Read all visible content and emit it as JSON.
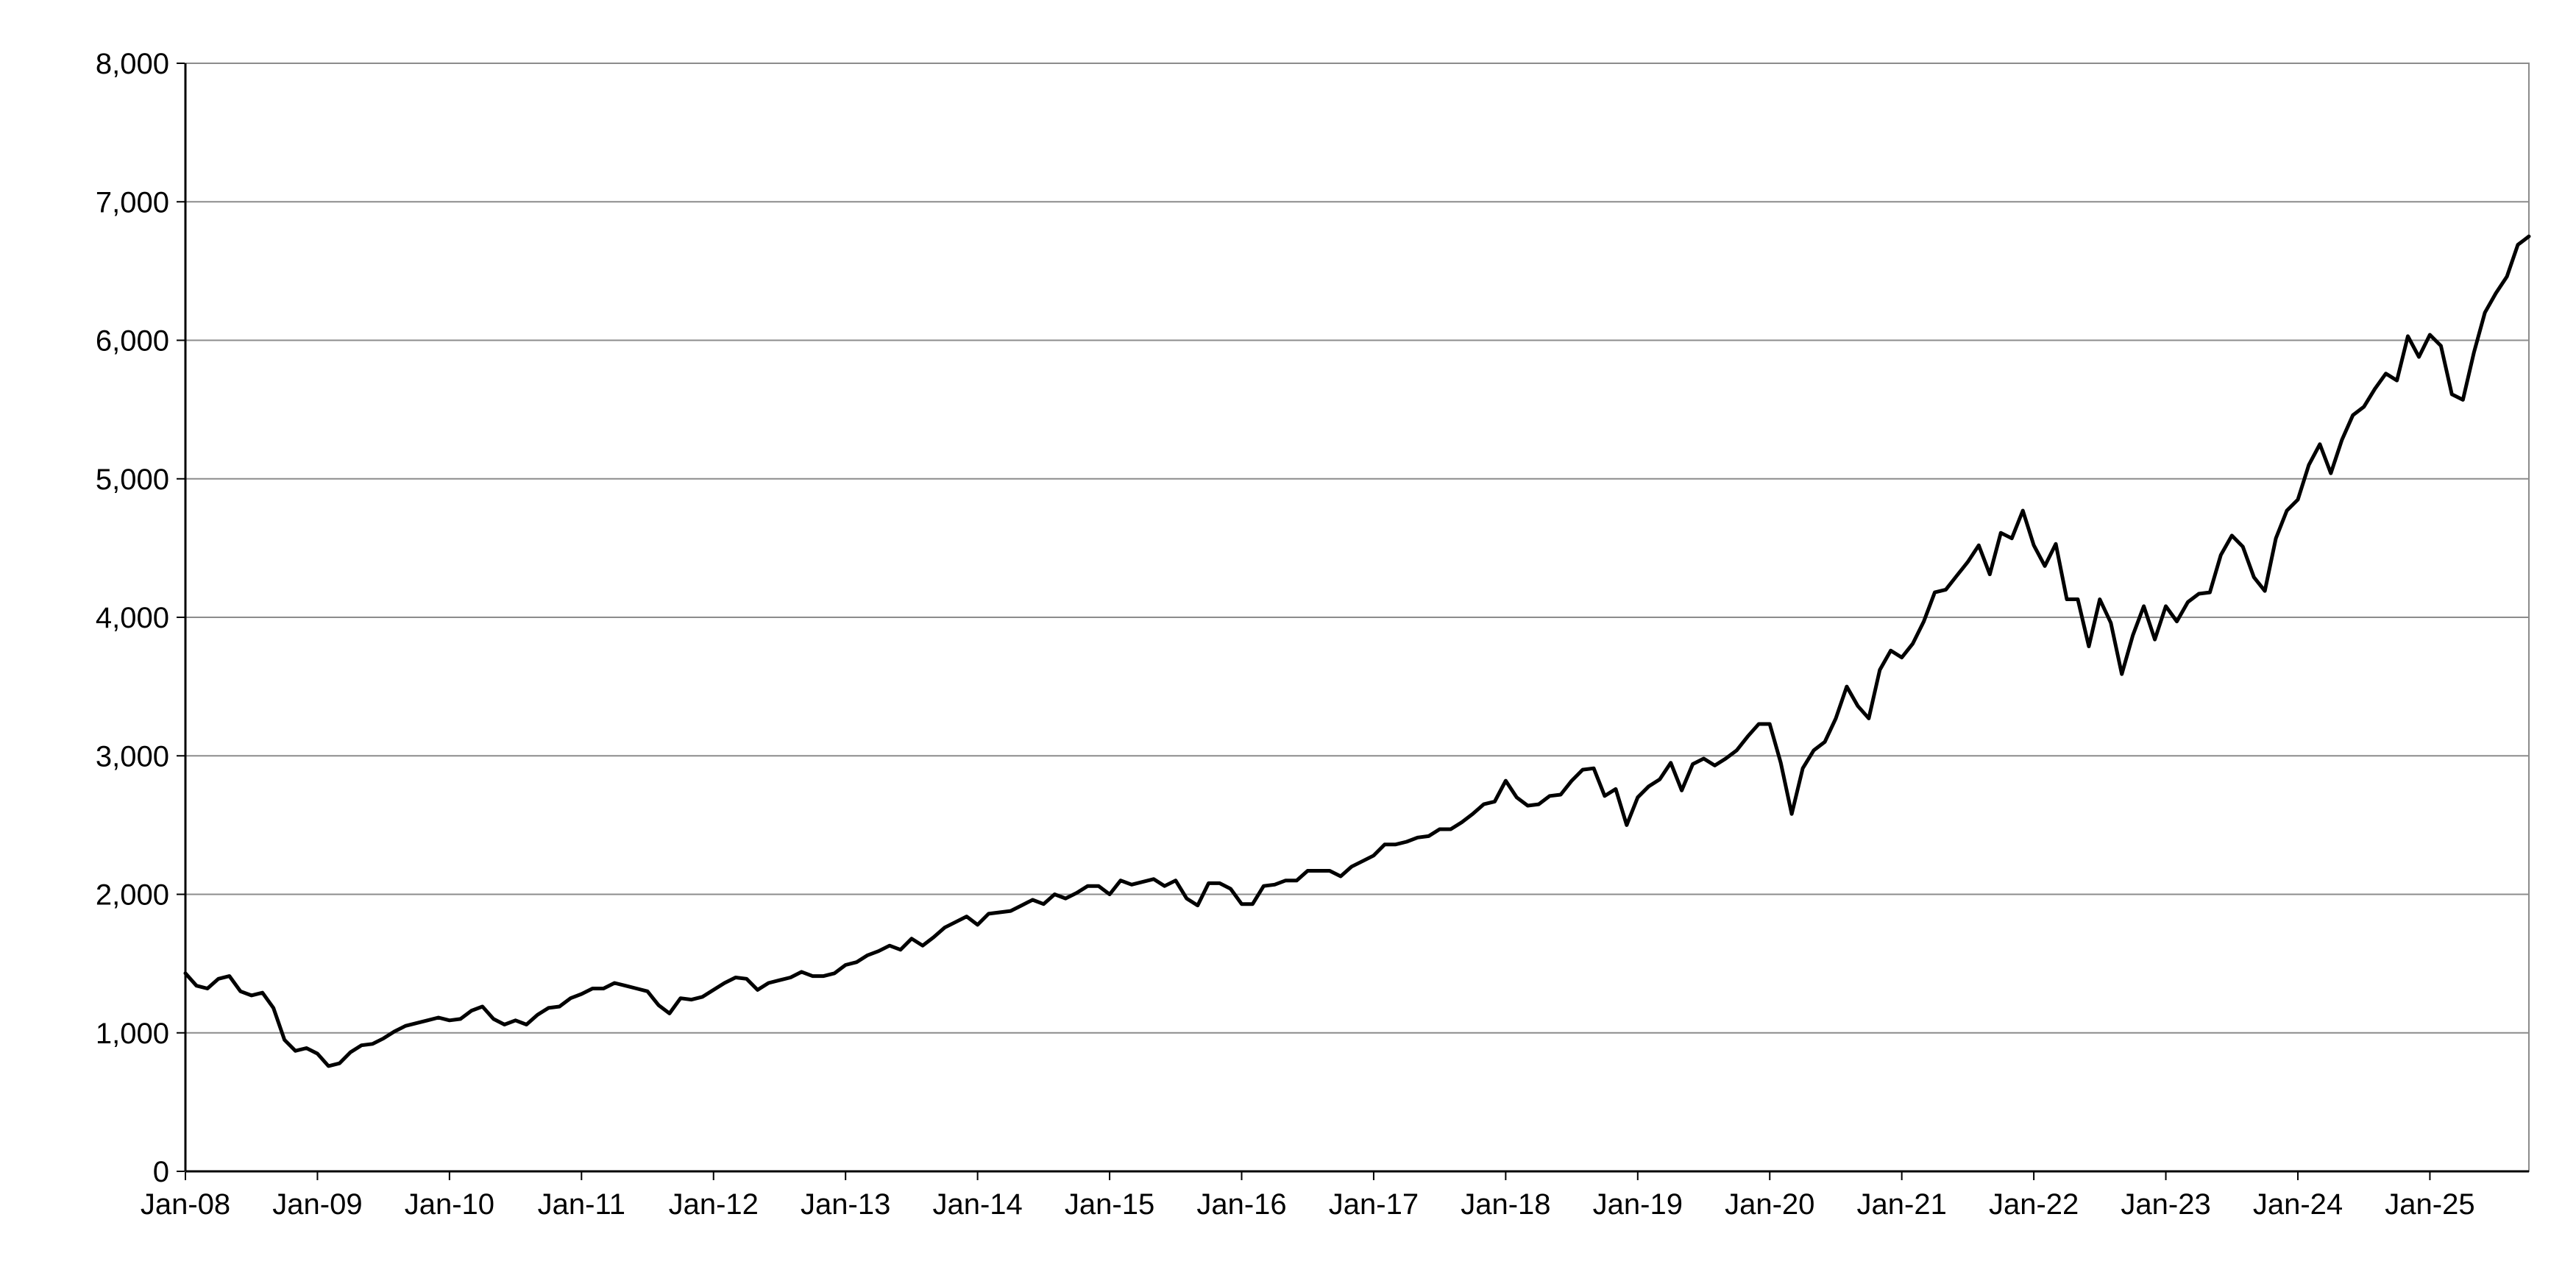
{
  "chart_data": {
    "type": "line",
    "title": "",
    "xlabel": "",
    "ylabel": "",
    "x_tick_labels": [
      "Jan-08",
      "Jan-09",
      "Jan-10",
      "Jan-11",
      "Jan-12",
      "Jan-13",
      "Jan-14",
      "Jan-15",
      "Jan-16",
      "Jan-17",
      "Jan-18",
      "Jan-19",
      "Jan-20",
      "Jan-21",
      "Jan-22",
      "Jan-23",
      "Jan-24",
      "Jan-25"
    ],
    "y_tick_labels": [
      "0",
      "1,000",
      "2,000",
      "3,000",
      "4,000",
      "5,000",
      "6,000",
      "7,000",
      "8,000"
    ],
    "y_ticks": [
      0,
      1000,
      2000,
      3000,
      4000,
      5000,
      6000,
      7000,
      8000
    ],
    "ylim": [
      0,
      8000
    ],
    "xlim": [
      "2008-01",
      "2025-10"
    ],
    "grid": "horizontal",
    "legend": "none",
    "series": [
      {
        "color": "#000000",
        "x": [
          "2008-01",
          "2008-02",
          "2008-03",
          "2008-04",
          "2008-05",
          "2008-06",
          "2008-07",
          "2008-08",
          "2008-09",
          "2008-10",
          "2008-11",
          "2008-12",
          "2009-01",
          "2009-02",
          "2009-03",
          "2009-04",
          "2009-05",
          "2009-06",
          "2009-07",
          "2009-08",
          "2009-09",
          "2009-10",
          "2009-11",
          "2009-12",
          "2010-01",
          "2010-02",
          "2010-03",
          "2010-04",
          "2010-05",
          "2010-06",
          "2010-07",
          "2010-08",
          "2010-09",
          "2010-10",
          "2010-11",
          "2010-12",
          "2011-01",
          "2011-02",
          "2011-03",
          "2011-04",
          "2011-05",
          "2011-06",
          "2011-07",
          "2011-08",
          "2011-09",
          "2011-10",
          "2011-11",
          "2011-12",
          "2012-01",
          "2012-02",
          "2012-03",
          "2012-04",
          "2012-05",
          "2012-06",
          "2012-07",
          "2012-08",
          "2012-09",
          "2012-10",
          "2012-11",
          "2012-12",
          "2013-01",
          "2013-02",
          "2013-03",
          "2013-04",
          "2013-05",
          "2013-06",
          "2013-07",
          "2013-08",
          "2013-09",
          "2013-10",
          "2013-11",
          "2013-12",
          "2014-01",
          "2014-02",
          "2014-03",
          "2014-04",
          "2014-05",
          "2014-06",
          "2014-07",
          "2014-08",
          "2014-09",
          "2014-10",
          "2014-11",
          "2014-12",
          "2015-01",
          "2015-02",
          "2015-03",
          "2015-04",
          "2015-05",
          "2015-06",
          "2015-07",
          "2015-08",
          "2015-09",
          "2015-10",
          "2015-11",
          "2015-12",
          "2016-01",
          "2016-02",
          "2016-03",
          "2016-04",
          "2016-05",
          "2016-06",
          "2016-07",
          "2016-08",
          "2016-09",
          "2016-10",
          "2016-11",
          "2016-12",
          "2017-01",
          "2017-02",
          "2017-03",
          "2017-04",
          "2017-05",
          "2017-06",
          "2017-07",
          "2017-08",
          "2017-09",
          "2017-10",
          "2017-11",
          "2017-12",
          "2018-01",
          "2018-02",
          "2018-03",
          "2018-04",
          "2018-05",
          "2018-06",
          "2018-07",
          "2018-08",
          "2018-09",
          "2018-10",
          "2018-11",
          "2018-12",
          "2019-01",
          "2019-02",
          "2019-03",
          "2019-04",
          "2019-05",
          "2019-06",
          "2019-07",
          "2019-08",
          "2019-09",
          "2019-10",
          "2019-11",
          "2019-12",
          "2020-01",
          "2020-02",
          "2020-03",
          "2020-04",
          "2020-05",
          "2020-06",
          "2020-07",
          "2020-08",
          "2020-09",
          "2020-10",
          "2020-11",
          "2020-12",
          "2021-01",
          "2021-02",
          "2021-03",
          "2021-04",
          "2021-05",
          "2021-06",
          "2021-07",
          "2021-08",
          "2021-09",
          "2021-10",
          "2021-11",
          "2021-12",
          "2022-01",
          "2022-02",
          "2022-03",
          "2022-04",
          "2022-05",
          "2022-06",
          "2022-07",
          "2022-08",
          "2022-09",
          "2022-10",
          "2022-11",
          "2022-12",
          "2023-01",
          "2023-02",
          "2023-03",
          "2023-04",
          "2023-05",
          "2023-06",
          "2023-07",
          "2023-08",
          "2023-09",
          "2023-10",
          "2023-11",
          "2023-12",
          "2024-01",
          "2024-02",
          "2024-03",
          "2024-04",
          "2024-05",
          "2024-06",
          "2024-07",
          "2024-08",
          "2024-09",
          "2024-10",
          "2024-11",
          "2024-12",
          "2025-01",
          "2025-02",
          "2025-03",
          "2025-04",
          "2025-05",
          "2025-06",
          "2025-07",
          "2025-08",
          "2025-09",
          "2025-10"
        ],
        "y": [
          1430,
          1340,
          1320,
          1390,
          1410,
          1300,
          1270,
          1290,
          1180,
          950,
          870,
          890,
          850,
          760,
          780,
          860,
          910,
          920,
          960,
          1010,
          1050,
          1070,
          1090,
          1110,
          1090,
          1100,
          1160,
          1190,
          1100,
          1060,
          1090,
          1060,
          1130,
          1180,
          1190,
          1250,
          1280,
          1320,
          1320,
          1360,
          1340,
          1320,
          1300,
          1200,
          1140,
          1250,
          1240,
          1260,
          1310,
          1360,
          1400,
          1390,
          1310,
          1360,
          1380,
          1400,
          1440,
          1410,
          1410,
          1430,
          1490,
          1510,
          1560,
          1590,
          1630,
          1600,
          1680,
          1630,
          1690,
          1760,
          1800,
          1840,
          1780,
          1860,
          1870,
          1880,
          1920,
          1960,
          1930,
          2000,
          1970,
          2010,
          2060,
          2060,
          2000,
          2100,
          2070,
          2090,
          2110,
          2060,
          2100,
          1970,
          1920,
          2080,
          2080,
          2040,
          1930,
          1930,
          2060,
          2070,
          2100,
          2100,
          2170,
          2170,
          2170,
          2130,
          2200,
          2240,
          2280,
          2360,
          2360,
          2380,
          2410,
          2420,
          2470,
          2470,
          2520,
          2580,
          2650,
          2670,
          2820,
          2700,
          2640,
          2650,
          2710,
          2720,
          2820,
          2900,
          2910,
          2710,
          2760,
          2500,
          2700,
          2780,
          2830,
          2950,
          2750,
          2940,
          2980,
          2930,
          2980,
          3040,
          3140,
          3230,
          3230,
          2950,
          2580,
          2910,
          3040,
          3100,
          3270,
          3500,
          3360,
          3270,
          3620,
          3760,
          3710,
          3810,
          3970,
          4180,
          4200,
          4300,
          4400,
          4520,
          4310,
          4610,
          4570,
          4770,
          4520,
          4370,
          4530,
          4130,
          4130,
          3790,
          4130,
          3960,
          3590,
          3870,
          4080,
          3840,
          4080,
          3970,
          4110,
          4170,
          4180,
          4450,
          4590,
          4510,
          4290,
          4190,
          4570,
          4770,
          4850,
          5100,
          5250,
          5040,
          5280,
          5460,
          5520,
          5650,
          5760,
          5710,
          6030,
          5880,
          6040,
          5960,
          5610,
          5570,
          5910,
          6200,
          6340,
          6460,
          6690,
          6750
        ]
      }
    ]
  }
}
